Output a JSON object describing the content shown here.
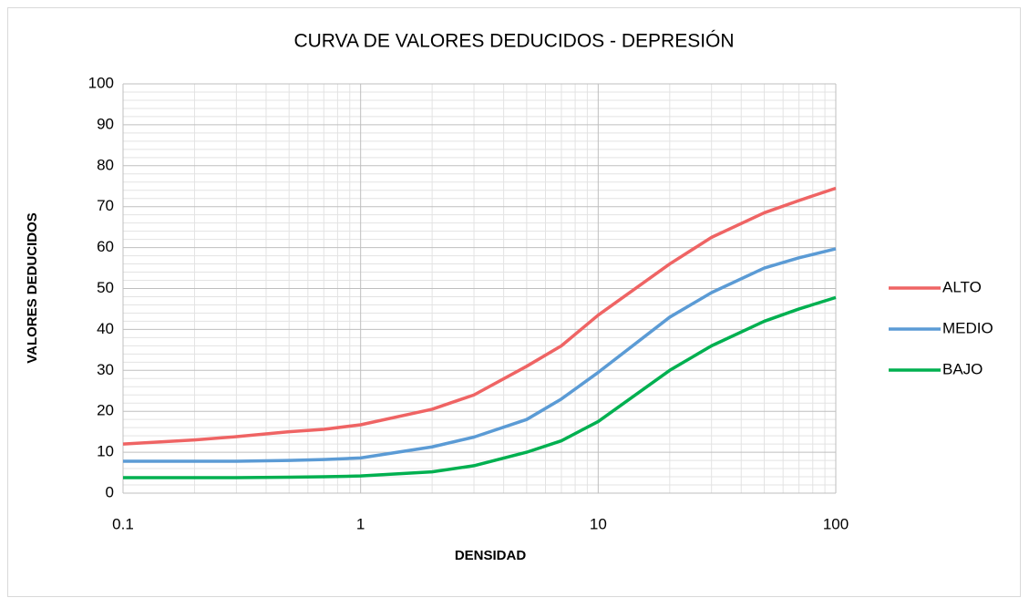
{
  "chart_data": {
    "type": "line",
    "title": "CURVA DE VALORES DEDUCIDOS - DEPRESIÓN",
    "x_label": "DENSIDAD",
    "y_label": "VALORES DEDUCIDOS",
    "x": [
      0.1,
      0.2,
      0.3,
      0.5,
      0.7,
      1,
      2,
      3,
      5,
      7,
      10,
      20,
      30,
      50,
      70,
      100
    ],
    "series": [
      {
        "name": "ALTO",
        "color": "#ef6464",
        "values": [
          12,
          13,
          13.8,
          15,
          15.6,
          16.7,
          20.5,
          24,
          31,
          36,
          43.5,
          56,
          62.5,
          68.5,
          71.5,
          74.5
        ]
      },
      {
        "name": "MEDIO",
        "color": "#5b9bd5",
        "values": [
          7.8,
          7.8,
          7.8,
          8,
          8.2,
          8.6,
          11.3,
          13.7,
          18,
          23,
          29.5,
          43,
          49,
          55,
          57.5,
          59.7
        ]
      },
      {
        "name": "BAJO",
        "color": "#00b050",
        "values": [
          3.8,
          3.8,
          3.8,
          3.9,
          4,
          4.2,
          5.2,
          6.7,
          10,
          12.8,
          17.5,
          30,
          36,
          42,
          45,
          47.8
        ]
      }
    ],
    "xlim": [
      0.1,
      100
    ],
    "xticks": [
      0.1,
      1,
      10,
      100
    ],
    "x_log": true,
    "ylim": [
      0,
      100
    ],
    "yticks": [
      0,
      10,
      20,
      30,
      40,
      50,
      60,
      70,
      80,
      90,
      100
    ],
    "grid": true,
    "minor_grid": true,
    "legend": "right"
  }
}
